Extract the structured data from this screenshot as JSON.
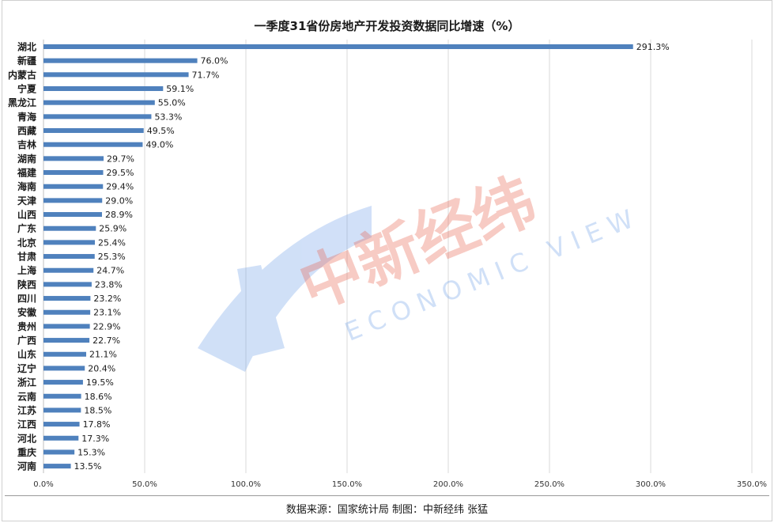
{
  "chart_data": {
    "type": "bar",
    "orientation": "horizontal",
    "title": "一季度31省份房地产开发投资数据同比增速（%）",
    "categories": [
      "湖北",
      "新疆",
      "内蒙古",
      "宁夏",
      "黑龙江",
      "青海",
      "西藏",
      "吉林",
      "湖南",
      "福建",
      "海南",
      "天津",
      "山西",
      "广东",
      "北京",
      "甘肃",
      "上海",
      "陕西",
      "四川",
      "安徽",
      "贵州",
      "广西",
      "山东",
      "辽宁",
      "浙江",
      "云南",
      "江苏",
      "江西",
      "河北",
      "重庆",
      "河南"
    ],
    "values": [
      291.3,
      76.0,
      71.7,
      59.1,
      55.0,
      53.3,
      49.5,
      49.0,
      29.7,
      29.5,
      29.4,
      29.0,
      28.9,
      25.9,
      25.4,
      25.3,
      24.7,
      23.8,
      23.2,
      23.1,
      22.9,
      22.7,
      21.1,
      20.4,
      19.5,
      18.6,
      18.5,
      17.8,
      17.3,
      15.3,
      13.5
    ],
    "data_labels": [
      "291.3%",
      "76.0%",
      "71.7%",
      "59.1%",
      "55.0%",
      "53.3%",
      "49.5%",
      "49.0%",
      "29.7%",
      "29.5%",
      "29.4%",
      "29.0%",
      "28.9%",
      "25.9%",
      "25.4%",
      "25.3%",
      "24.7%",
      "23.8%",
      "23.2%",
      "23.1%",
      "22.9%",
      "22.7%",
      "21.1%",
      "20.4%",
      "19.5%",
      "18.6%",
      "18.5%",
      "17.8%",
      "17.3%",
      "15.3%",
      "13.5%"
    ],
    "x_ticks": [
      "0.0%",
      "50.0%",
      "100.0%",
      "150.0%",
      "200.0%",
      "250.0%",
      "300.0%",
      "350.0%"
    ],
    "xlim": [
      0,
      350
    ],
    "grid": "vertical",
    "bar_color": "#4f81bd"
  },
  "footer": {
    "source": "数据来源：国家统计局  制图：中新经纬  张猛"
  },
  "watermark": {
    "brand": "中新经纬",
    "subtitle": "ECONOMIC VIEW"
  }
}
